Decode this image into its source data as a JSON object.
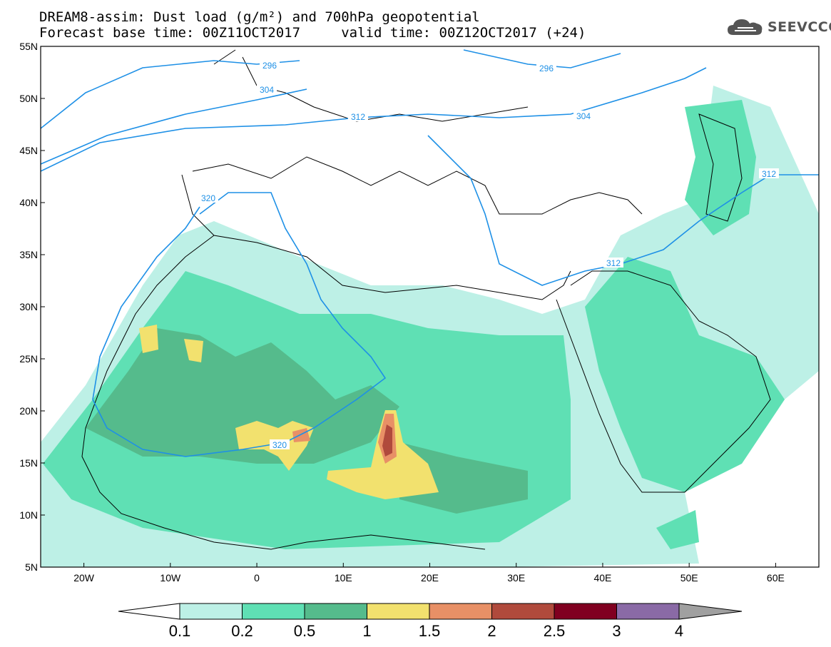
{
  "header": {
    "title_line1": "DREAM8-assim: Dust load (g/m²) and 700hPa geopotential",
    "title_line2": "Forecast base time: 00Z11OCT2017     valid time: 00Z12OCT2017 (+24)",
    "logo_text": "SEEVCCC",
    "logo_icon": "cloud-icon"
  },
  "map": {
    "lat_labels": [
      "55N",
      "50N",
      "45N",
      "40N",
      "35N",
      "30N",
      "25N",
      "20N",
      "15N",
      "10N",
      "5N"
    ],
    "lon_labels": [
      "20W",
      "10W",
      "0",
      "10E",
      "20E",
      "30E",
      "40E",
      "50E",
      "60E"
    ],
    "lat_range": [
      5,
      55
    ],
    "lon_range": [
      -25,
      65
    ],
    "contour_color": "#1e90e6",
    "contour_labels": [
      "296",
      "304",
      "312",
      "320",
      "296",
      "304",
      "312",
      "312",
      "320"
    ]
  },
  "colorbar": {
    "labels": [
      "0.1",
      "0.2",
      "0.5",
      "1",
      "1.5",
      "2",
      "2.5",
      "3",
      "4"
    ],
    "colors": [
      "#bdf0e6",
      "#5fe0b4",
      "#55bb8c",
      "#f2e16e",
      "#e89066",
      "#b04a3c",
      "#800020",
      "#8a6aa6"
    ],
    "colors_ends": [
      "#ffffff",
      "#a0a0a0"
    ]
  }
}
